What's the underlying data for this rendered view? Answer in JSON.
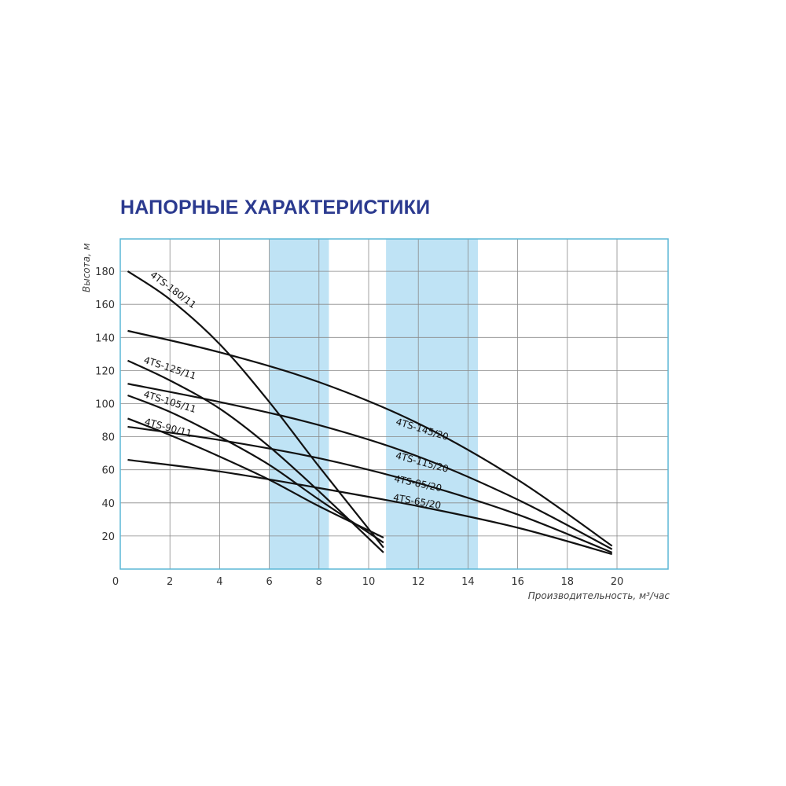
{
  "chart_data": {
    "type": "line",
    "title": "НАПОРНЫЕ ХАРАКТЕРИСТИКИ",
    "xlabel": "Производительность, м³/час",
    "ylabel": "Высота, м",
    "xlim": [
      0,
      22
    ],
    "ylim": [
      0,
      195
    ],
    "x_ticks": [
      "0",
      "2",
      "4",
      "6",
      "8",
      "10",
      "12",
      "14",
      "16",
      "18",
      "20"
    ],
    "y_ticks": [
      "20",
      "40",
      "60",
      "80",
      "100",
      "120",
      "140",
      "160",
      "180"
    ],
    "grid": true,
    "highlight_bands": [
      [
        6,
        8.4
      ],
      [
        10.7,
        14.4
      ]
    ],
    "colors": {
      "title": "#2b3a8f",
      "grid": "#8a8a8a",
      "frame": "#5bb7d6",
      "band": "#bfe3f5",
      "curve": "#111111"
    },
    "series": [
      {
        "name": "4TS-180/11",
        "x": [
          0.3,
          2,
          4,
          6,
          8,
          10.6
        ],
        "y": [
          180,
          163,
          136,
          101,
          62,
          13
        ]
      },
      {
        "name": "4TS-125/11",
        "x": [
          0.3,
          2,
          4,
          6,
          8,
          10.6
        ],
        "y": [
          126,
          114,
          97,
          74,
          47,
          10
        ]
      },
      {
        "name": "4TS-105/11",
        "x": [
          0.3,
          2,
          4,
          6,
          8,
          10.6
        ],
        "y": [
          105,
          95,
          80,
          63,
          42,
          16
        ]
      },
      {
        "name": "4TS-90/11",
        "x": [
          0.3,
          2,
          4,
          6,
          8,
          10.6
        ],
        "y": [
          91,
          81,
          68,
          54,
          38,
          19
        ]
      },
      {
        "name": "4TS-145/20",
        "x": [
          0.3,
          4,
          8,
          12,
          16,
          19.8
        ],
        "y": [
          144,
          131,
          113,
          88,
          54,
          14
        ]
      },
      {
        "name": "4TS-115/20",
        "x": [
          0.3,
          4,
          8,
          12,
          16,
          19.8
        ],
        "y": [
          112,
          101,
          87,
          68,
          42,
          12
        ]
      },
      {
        "name": "4TS-85/20",
        "x": [
          0.3,
          4,
          8,
          12,
          16,
          19.8
        ],
        "y": [
          86,
          78,
          67,
          52,
          33,
          10
        ]
      },
      {
        "name": "4TS-65/20",
        "x": [
          0.3,
          4,
          8,
          12,
          16,
          19.8
        ],
        "y": [
          66,
          59,
          49,
          38,
          25,
          9
        ]
      }
    ]
  }
}
